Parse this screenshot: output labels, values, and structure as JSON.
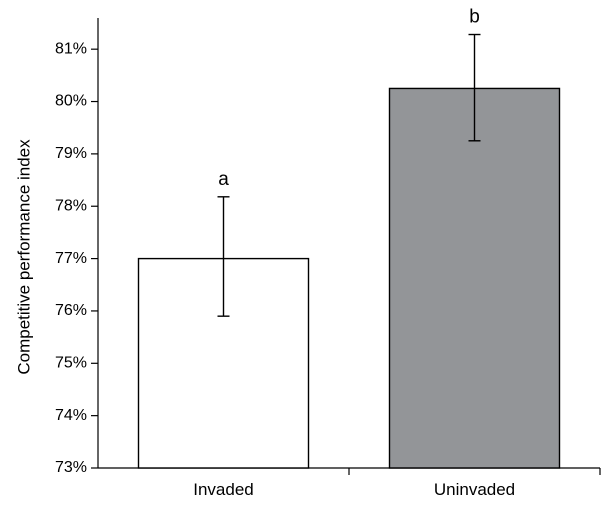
{
  "chart_data": {
    "type": "bar",
    "title": "",
    "xlabel": "",
    "ylabel": "Competitive performance index",
    "ylim": [
      73,
      81.5
    ],
    "yticks": [
      73,
      74,
      75,
      76,
      77,
      78,
      79,
      80,
      81
    ],
    "ytick_labels": [
      "73%",
      "74%",
      "75%",
      "76%",
      "77%",
      "78%",
      "79%",
      "80%",
      "81%"
    ],
    "categories": [
      "Invaded",
      "Uninvaded"
    ],
    "values": [
      77.0,
      80.25
    ],
    "error_low": [
      75.9,
      79.25
    ],
    "error_high": [
      78.18,
      81.28
    ],
    "significance_labels": [
      "a",
      "b"
    ],
    "bar_colors": [
      "#ffffff",
      "#939598"
    ],
    "grid": false
  }
}
